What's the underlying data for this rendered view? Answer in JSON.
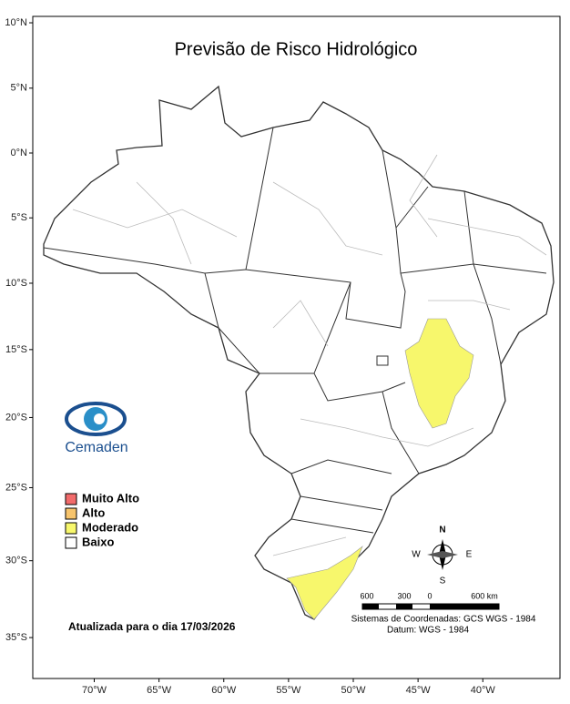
{
  "map": {
    "title": "Previsão de Risco Hidrológico",
    "latitudes": [
      {
        "value": 10,
        "label": "10°N"
      },
      {
        "value": 5,
        "label": "5°N"
      },
      {
        "value": 0,
        "label": "0°N"
      },
      {
        "value": -5,
        "label": "5°S"
      },
      {
        "value": -10,
        "label": "10°S"
      },
      {
        "value": -15,
        "label": "15°S"
      },
      {
        "value": -20,
        "label": "20°S"
      },
      {
        "value": -25,
        "label": "25°S"
      },
      {
        "value": -30,
        "label": "30°S"
      },
      {
        "value": -35,
        "label": "35°S"
      }
    ],
    "longitudes": [
      {
        "value": -70,
        "label": "70°W"
      },
      {
        "value": -65,
        "label": "65°W"
      },
      {
        "value": -60,
        "label": "60°W"
      },
      {
        "value": -55,
        "label": "55°W"
      },
      {
        "value": -50,
        "label": "50°W"
      },
      {
        "value": -45,
        "label": "45°W"
      },
      {
        "value": -40,
        "label": "40°W"
      }
    ],
    "legend": [
      {
        "name": "Muito Alto",
        "color": "#f26b6b"
      },
      {
        "name": "Alto",
        "color": "#f7c46c"
      },
      {
        "name": "Moderado",
        "color": "#f7f76c"
      },
      {
        "name": "Baixo",
        "color": "#ffffff"
      }
    ],
    "logo": "Cemaden",
    "updated": "Atualizada para o dia 17/03/2026",
    "compass": {
      "north": "N",
      "south": "S",
      "east": "E",
      "west": "W"
    },
    "scale_labels": [
      "600",
      "300",
      "0",
      "600 km"
    ],
    "coordinate_system": "Sistemas de Coordenadas: GCS WGS - 1984",
    "datum": "Datum: WGS - 1984"
  }
}
